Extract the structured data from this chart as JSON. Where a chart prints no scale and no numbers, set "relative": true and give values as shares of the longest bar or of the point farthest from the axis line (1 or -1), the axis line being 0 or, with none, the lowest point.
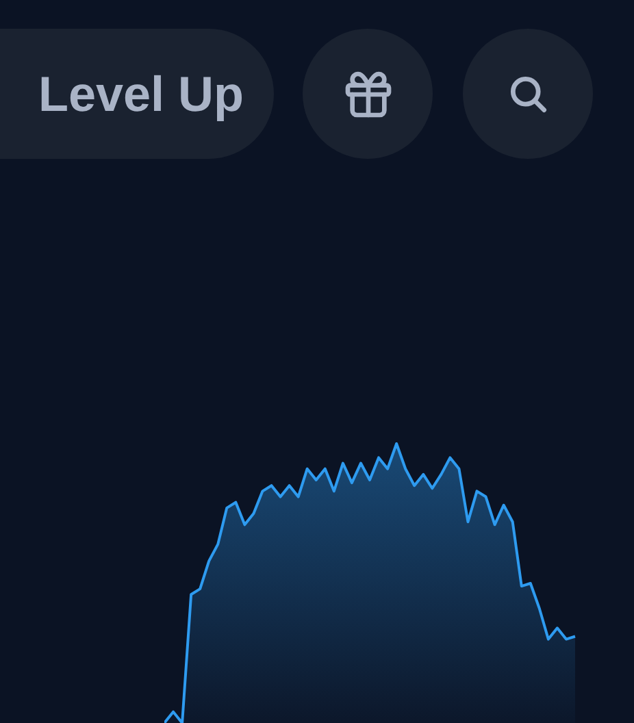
{
  "chart_data": {
    "type": "area",
    "annotations": [
      "Level Up"
    ],
    "relative": true,
    "categories": [
      null,
      null,
      null,
      null,
      null,
      null,
      null,
      null,
      null,
      null,
      null,
      null,
      null,
      null,
      null,
      null,
      null,
      null,
      null,
      null,
      null,
      null,
      null,
      null,
      null,
      null,
      null,
      null,
      null,
      null,
      null,
      null,
      null,
      null,
      null,
      null,
      null,
      null,
      null,
      null,
      null,
      null,
      null,
      null,
      null,
      null,
      null
    ],
    "series": [
      {
        "color": "#2e9bf0",
        "values": [
          0,
          0.04,
          0,
          0.46,
          0.48,
          0.58,
          0.64,
          0.77,
          0.79,
          0.71,
          0.75,
          0.83,
          0.85,
          0.81,
          0.85,
          0.81,
          0.91,
          0.87,
          0.91,
          0.83,
          0.93,
          0.86,
          0.93,
          0.87,
          0.95,
          0.91,
          1,
          0.91,
          0.85,
          0.89,
          0.84,
          0.89,
          0.95,
          0.91,
          0.72,
          0.83,
          0.81,
          0.71,
          0.78,
          0.72,
          0.49,
          0.5,
          0.41,
          0.3,
          0.34,
          0.3,
          0.31
        ]
      }
    ]
  }
}
